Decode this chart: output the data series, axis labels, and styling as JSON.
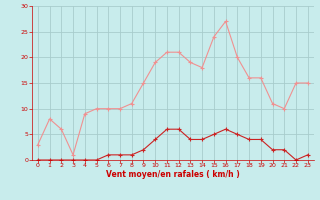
{
  "hours": [
    0,
    1,
    2,
    3,
    4,
    5,
    6,
    7,
    8,
    9,
    10,
    11,
    12,
    13,
    14,
    15,
    16,
    17,
    18,
    19,
    20,
    21,
    22,
    23
  ],
  "rafales": [
    3,
    8,
    6,
    1,
    9,
    10,
    10,
    10,
    11,
    15,
    19,
    21,
    21,
    19,
    18,
    24,
    27,
    20,
    16,
    16,
    11,
    10,
    15,
    15
  ],
  "moyen": [
    0,
    0,
    0,
    0,
    0,
    0,
    1,
    1,
    1,
    2,
    4,
    6,
    6,
    4,
    4,
    5,
    6,
    5,
    4,
    4,
    2,
    2,
    0,
    1
  ],
  "bg_color": "#c8ecec",
  "grid_color": "#a8cccc",
  "line_color_rafales": "#f09090",
  "line_color_moyen": "#cc2222",
  "marker_color_rafales": "#f09090",
  "marker_color_moyen": "#cc2222",
  "xlabel": "Vent moyen/en rafales ( km/h )",
  "xlabel_color": "#cc0000",
  "tick_color": "#cc0000",
  "ylim": [
    0,
    30
  ],
  "yticks": [
    0,
    5,
    10,
    15,
    20,
    25,
    30
  ]
}
